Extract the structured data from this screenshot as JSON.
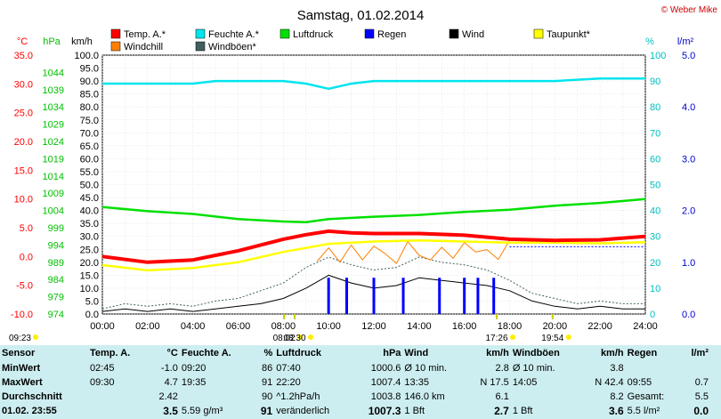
{
  "chart_data": {
    "type": "line",
    "title": "Samstag, 01.02.2014",
    "copyright": "© Weber Mike",
    "legend": [
      {
        "name": "Temp. A.*",
        "color": "#ff0000"
      },
      {
        "name": "Feuchte A.*",
        "color": "#00e5ee"
      },
      {
        "name": "Luftdruck",
        "color": "#00e000"
      },
      {
        "name": "Regen",
        "color": "#0000ff"
      },
      {
        "name": "Wind",
        "color": "#000000"
      },
      {
        "name": "Taupunkt*",
        "color": "#ffff00"
      },
      {
        "name": "Windchill",
        "color": "#ff8000"
      },
      {
        "name": "Windböen*",
        "color": "#406060"
      }
    ],
    "axes": {
      "temp_label": "°C",
      "temp_ticks": [
        "35.0",
        "30.0",
        "25.0",
        "20.0",
        "15.0",
        "10.0",
        "5.0",
        "0.0",
        "-5.0",
        "-10.0"
      ],
      "hpa_label": "hPa",
      "hpa_ticks": [
        "1044",
        "1039",
        "1034",
        "1029",
        "1024",
        "1019",
        "1014",
        "1009",
        "1004",
        "999",
        "994",
        "989",
        "984",
        "979",
        "974"
      ],
      "kmh_label": "km/h",
      "kmh_ticks": [
        "100.0",
        "95.0",
        "90.0",
        "85.0",
        "80.0",
        "75.0",
        "70.0",
        "65.0",
        "60.0",
        "55.0",
        "50.0",
        "45.0",
        "40.0",
        "35.0",
        "30.0",
        "25.0",
        "20.0",
        "15.0",
        "10.0",
        "5.0",
        "0.0"
      ],
      "pct_label": "%",
      "pct_ticks": [
        "100",
        "90",
        "80",
        "70",
        "60",
        "50",
        "40",
        "30",
        "20",
        "10",
        "0"
      ],
      "rain_label": "l/m²",
      "rain_ticks": [
        "5.0",
        "4.0",
        "3.0",
        "2.0",
        "1.0",
        "0.0"
      ],
      "x_ticks": [
        "00:00",
        "02:00",
        "04:00",
        "06:00",
        "08:00",
        "10:00",
        "12:00",
        "14:00",
        "16:00",
        "18:00",
        "20:00",
        "22:00",
        "24:00"
      ]
    },
    "sun_events": [
      {
        "label": "09:23",
        "hour": 0
      },
      {
        "label": "08:02",
        "hour": 8.03
      },
      {
        "label": "08:30",
        "hour": 8.5
      },
      {
        "label": "17:26",
        "hour": 17.43
      },
      {
        "label": "19:54",
        "hour": 19.9
      }
    ],
    "series": {
      "temp": {
        "hours": [
          0,
          2,
          4,
          6,
          8,
          9,
          10,
          11,
          12,
          14,
          16,
          18,
          20,
          22,
          24
        ],
        "values": [
          0.0,
          -1.0,
          -0.6,
          1.0,
          3.0,
          3.8,
          4.4,
          4.1,
          4.0,
          4.0,
          3.7,
          3.0,
          2.8,
          2.9,
          3.5
        ]
      },
      "humidity": {
        "hours": [
          0,
          2,
          4,
          5,
          7,
          8,
          9,
          10,
          11,
          12,
          14,
          16,
          18,
          20,
          22,
          24
        ],
        "values": [
          89,
          89,
          89,
          90,
          90,
          90,
          89,
          87,
          89,
          90,
          90,
          90,
          90,
          90,
          91,
          91
        ]
      },
      "pressure": {
        "hours": [
          0,
          2,
          4,
          6,
          8,
          9,
          10,
          12,
          14,
          16,
          18,
          20,
          22,
          24
        ],
        "values": [
          1005.0,
          1003.8,
          1003.0,
          1001.5,
          1000.8,
          1000.6,
          1001.5,
          1002.2,
          1002.7,
          1003.6,
          1004.2,
          1005.4,
          1006.2,
          1007.3
        ]
      },
      "dewpoint": {
        "hours": [
          0,
          2,
          4,
          6,
          8,
          10,
          12,
          14,
          16,
          18,
          20,
          22,
          24
        ],
        "values": [
          -1.5,
          -2.4,
          -2.0,
          -1.0,
          0.8,
          2.2,
          2.6,
          2.8,
          2.6,
          2.4,
          2.4,
          2.3,
          2.5
        ]
      },
      "windchill": {
        "hours": [
          9.5,
          10,
          10.5,
          11,
          11.5,
          12,
          12.5,
          13,
          13.5,
          14,
          14.5,
          15,
          15.5,
          16,
          16.5,
          17,
          17.5,
          18
        ],
        "values": [
          -0.8,
          1.5,
          -1.0,
          2.0,
          -0.6,
          1.8,
          0.5,
          -1.2,
          2.6,
          0.2,
          -0.6,
          1.6,
          -0.3,
          2.4,
          0.8,
          1.2,
          -0.5,
          2.8
        ]
      },
      "wind": {
        "hours": [
          0,
          1,
          2,
          3,
          4,
          5,
          6,
          7,
          8,
          9,
          10,
          11,
          12,
          13,
          14,
          15,
          16,
          17,
          18,
          19,
          20,
          21,
          22,
          23,
          24
        ],
        "values": [
          1,
          2,
          1,
          2,
          1,
          2,
          3,
          4,
          6,
          10,
          15,
          12,
          10,
          11,
          14,
          13,
          12,
          11,
          9,
          5,
          3,
          2,
          3,
          2,
          2
        ]
      },
      "gusts": {
        "hours": [
          0,
          1,
          2,
          3,
          4,
          5,
          6,
          7,
          8,
          9,
          10,
          11,
          12,
          13,
          14,
          15,
          16,
          17,
          18,
          19,
          20,
          21,
          22,
          23,
          24
        ],
        "values": [
          2,
          4,
          3,
          4,
          3,
          5,
          6,
          9,
          12,
          18,
          22,
          19,
          17,
          18,
          22,
          20,
          19,
          17,
          13,
          8,
          6,
          4,
          5,
          4,
          4
        ]
      },
      "rain": {
        "hours": [
          10.0,
          10.8,
          12.0,
          13.3,
          14.9,
          16.0,
          16.6,
          17.3
        ],
        "values": [
          0.7,
          0.7,
          0.7,
          0.7,
          0.7,
          0.7,
          0.7,
          0.7
        ]
      }
    }
  },
  "stats": {
    "header": [
      "Sensor",
      "Temp. A.",
      "°C",
      "Feuchte A.",
      "%",
      "Luftdruck",
      "hPa",
      "Wind",
      "km/h",
      "Windböen",
      "km/h",
      "Regen",
      "l/m²"
    ],
    "rows": [
      [
        "MinWert",
        "02:45",
        "-1.0",
        "09:20",
        "86",
        "07:40",
        "1000.6",
        "Ø 10 min.",
        "2.8",
        "Ø 10 min.",
        "3.8",
        "",
        ""
      ],
      [
        "MaxWert",
        "09:30",
        "4.7",
        "19:35",
        "91",
        "22:20",
        "1007.4",
        "13:35",
        "N 17.5",
        "14:05",
        "N 42.4",
        "09:55",
        "0.7"
      ],
      [
        "Durchschnitt",
        "",
        "2.42",
        "",
        "90",
        "^1.2hPa/h",
        "1003.8",
        "146.0 km",
        "6.1",
        "",
        "8.2",
        "Gesamt:",
        "5.5"
      ],
      [
        "01.02. 23:55",
        "",
        "3.5",
        "5.59 g/m³",
        "91",
        "veränderlich",
        "1007.3",
        "1 Bft",
        "2.7",
        "1 Bft",
        "3.6",
        "5.5 l/m²",
        "0.0"
      ]
    ]
  }
}
